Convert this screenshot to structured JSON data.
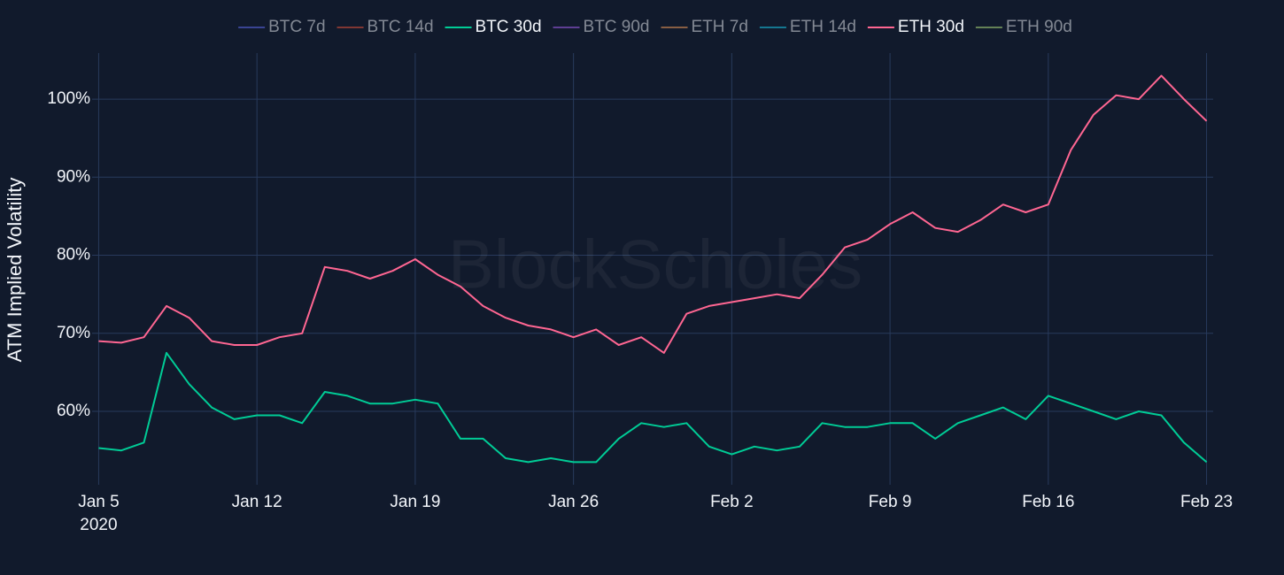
{
  "chart_data": {
    "type": "line",
    "watermark": "BlockScholes",
    "y_label": "ATM Implied Volatility",
    "x": [
      "2020-01-05",
      "2020-01-06",
      "2020-01-07",
      "2020-01-08",
      "2020-01-09",
      "2020-01-10",
      "2020-01-11",
      "2020-01-12",
      "2020-01-13",
      "2020-01-14",
      "2020-01-15",
      "2020-01-16",
      "2020-01-17",
      "2020-01-18",
      "2020-01-19",
      "2020-01-20",
      "2020-01-21",
      "2020-01-22",
      "2020-01-23",
      "2020-01-24",
      "2020-01-25",
      "2020-01-26",
      "2020-01-27",
      "2020-01-28",
      "2020-01-29",
      "2020-01-30",
      "2020-01-31",
      "2020-02-01",
      "2020-02-02",
      "2020-02-03",
      "2020-02-04",
      "2020-02-05",
      "2020-02-06",
      "2020-02-07",
      "2020-02-08",
      "2020-02-09",
      "2020-02-10",
      "2020-02-11",
      "2020-02-12",
      "2020-02-13",
      "2020-02-14",
      "2020-02-15",
      "2020-02-16",
      "2020-02-17",
      "2020-02-18",
      "2020-02-19",
      "2020-02-20",
      "2020-02-21",
      "2020-02-22",
      "2020-02-23"
    ],
    "xlim": [
      "2020-01-04T17:00",
      "2020-02-23T07:00"
    ],
    "xticks": [
      {
        "value": "2020-01-05",
        "label": "Jan 5\n2020"
      },
      {
        "value": "2020-01-12",
        "label": "Jan 12"
      },
      {
        "value": "2020-01-19",
        "label": "Jan 19"
      },
      {
        "value": "2020-01-26",
        "label": "Jan 26"
      },
      {
        "value": "2020-02-02",
        "label": "Feb 2"
      },
      {
        "value": "2020-02-09",
        "label": "Feb 9"
      },
      {
        "value": "2020-02-16",
        "label": "Feb 16"
      },
      {
        "value": "2020-02-23",
        "label": "Feb 23"
      }
    ],
    "ylim": [
      50.6,
      105.9
    ],
    "yticks": [
      {
        "value": 60,
        "label": "60%"
      },
      {
        "value": 70,
        "label": "70%"
      },
      {
        "value": 80,
        "label": "80%"
      },
      {
        "value": 90,
        "label": "90%"
      },
      {
        "value": 100,
        "label": "100%"
      }
    ],
    "grid": true,
    "legend": "top",
    "series": [
      {
        "name": "BTC 7d",
        "color": "#636efa",
        "visible": false
      },
      {
        "name": "BTC 14d",
        "color": "#ef553b",
        "visible": false
      },
      {
        "name": "BTC 30d",
        "color": "#00cc96",
        "visible": true,
        "values": [
          55.3,
          55,
          56,
          67.5,
          63.5,
          60.5,
          59,
          59.5,
          59.5,
          58.5,
          62.5,
          62,
          61,
          61,
          61.5,
          61,
          56.5,
          56.5,
          54,
          53.5,
          54,
          53.5,
          53.5,
          56.5,
          58.5,
          58,
          58.5,
          55.5,
          54.5,
          55.5,
          55,
          55.5,
          58.5,
          58,
          58,
          58.5,
          58.5,
          56.5,
          58.5,
          59.5,
          60.5,
          59,
          62,
          61,
          60,
          59,
          60,
          59.5,
          56,
          53.5
        ]
      },
      {
        "name": "BTC 90d",
        "color": "#ab63fa",
        "visible": false
      },
      {
        "name": "ETH 7d",
        "color": "#ffa15a",
        "visible": false
      },
      {
        "name": "ETH 14d",
        "color": "#19d3f3",
        "visible": false
      },
      {
        "name": "ETH 30d",
        "color": "#ff6692",
        "visible": true,
        "values": [
          69,
          68.8,
          69.5,
          73.5,
          72,
          69,
          68.5,
          68.5,
          69.5,
          70,
          78.5,
          78,
          77,
          78,
          79.5,
          77.5,
          76,
          73.5,
          72,
          71,
          70.5,
          69.5,
          70.5,
          68.5,
          69.5,
          67.5,
          72.5,
          73.5,
          74,
          74.5,
          75,
          74.5,
          77.5,
          81,
          82,
          84,
          85.5,
          83.5,
          83,
          84.5,
          86.5,
          85.5,
          86.5,
          93.5,
          98,
          100.5,
          100,
          103,
          100,
          97.2
        ]
      },
      {
        "name": "ETH 90d",
        "color": "#b6e880",
        "visible": false
      }
    ]
  }
}
